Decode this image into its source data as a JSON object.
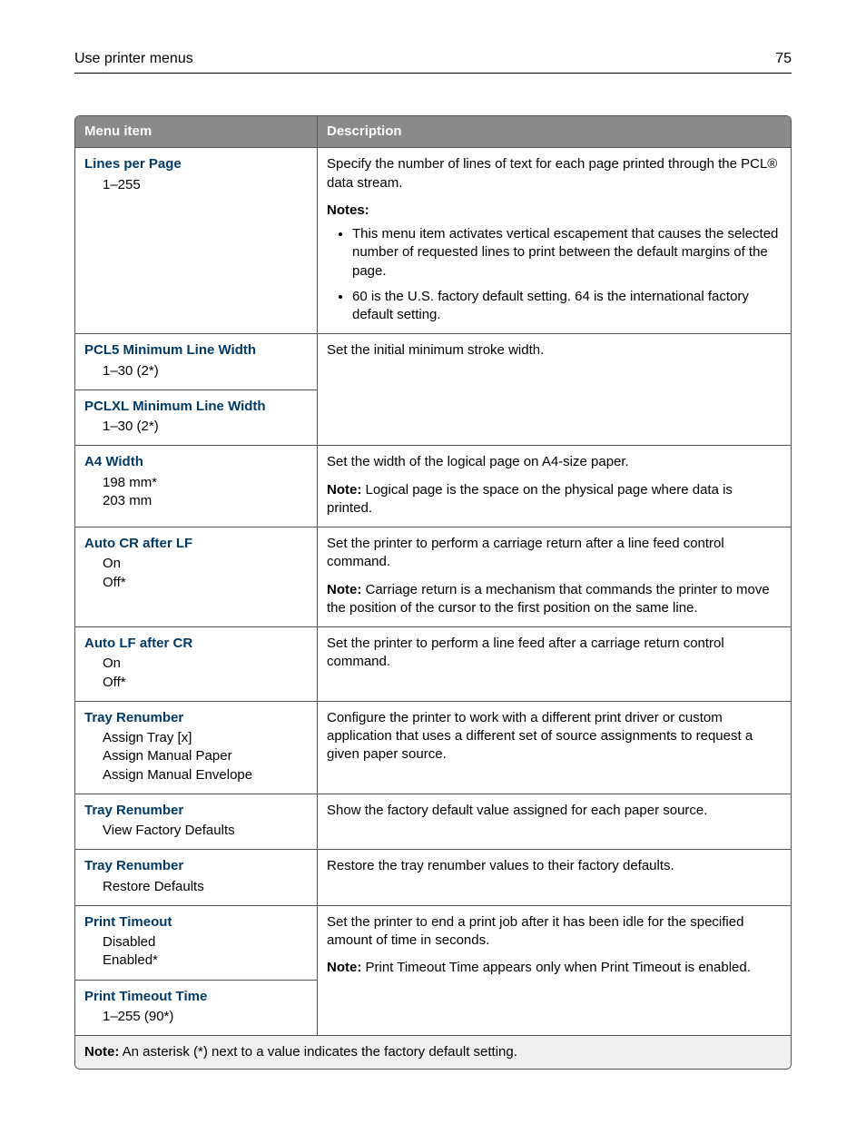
{
  "header": {
    "title": "Use printer menus",
    "page_number": "75"
  },
  "table": {
    "headers": {
      "menu_item": "Menu item",
      "description": "Description"
    },
    "rows": [
      {
        "title": "Lines per Page",
        "options": [
          "1–255"
        ],
        "desc_paragraphs": [
          "Specify the number of lines of text for each page printed through the PCL® data stream."
        ],
        "notes_label": "Notes:",
        "notes_bullets": [
          "This menu item activates vertical escapement that causes the selected number of requested lines to print between the default margins of the page.",
          "60 is the U.S. factory default setting. 64 is the international factory default setting."
        ]
      },
      {
        "title": "PCL5 Minimum Line Width",
        "options": [
          "1–30 (2*)"
        ],
        "desc_paragraphs": [
          "Set the initial minimum stroke width."
        ],
        "rowspan_desc_for_next": true
      },
      {
        "title": "PCLXL Minimum Line Width",
        "options": [
          "1–30 (2*)"
        ],
        "no_desc": true
      },
      {
        "title": "A4 Width",
        "options": [
          "198 mm*",
          "203 mm"
        ],
        "desc_paragraphs": [
          "Set the width of the logical page on A4‑size paper."
        ],
        "note_inline": "Note:",
        "note_inline_text": " Logical page is the space on the physical page where data is printed."
      },
      {
        "title": "Auto CR after LF",
        "options": [
          "On",
          "Off*"
        ],
        "desc_paragraphs": [
          "Set the printer to perform a carriage return after a line feed control command."
        ],
        "note_inline": "Note:",
        "note_inline_text": " Carriage return is a mechanism that commands the printer to move the position of the cursor to the first position on the same line."
      },
      {
        "title": "Auto LF after CR",
        "options": [
          "On",
          "Off*"
        ],
        "desc_paragraphs": [
          "Set the printer to perform a line feed after a carriage return control command."
        ]
      },
      {
        "title": "Tray Renumber",
        "options": [
          "Assign Tray [x]",
          "Assign Manual Paper",
          "Assign Manual Envelope"
        ],
        "desc_paragraphs": [
          "Configure the printer to work with a different print driver or custom application that uses a different set of source assignments to request a given paper source."
        ]
      },
      {
        "title": "Tray Renumber",
        "options": [
          "View Factory Defaults"
        ],
        "desc_paragraphs": [
          "Show the factory default value assigned for each paper source."
        ]
      },
      {
        "title": "Tray Renumber",
        "options": [
          "Restore Defaults"
        ],
        "desc_paragraphs": [
          "Restore the tray renumber values to their factory defaults."
        ]
      },
      {
        "title": "Print Timeout",
        "options": [
          "Disabled",
          "Enabled*"
        ],
        "desc_paragraphs": [
          "Set the printer to end a print job after it has been idle for the specified amount of time in seconds."
        ],
        "note_inline": "Note:",
        "note_inline_text": " Print Timeout Time appears only when Print Timeout is enabled.",
        "rowspan_desc_for_next": true
      },
      {
        "title": "Print Timeout Time",
        "options": [
          "1–255 (90*)"
        ],
        "no_desc": true
      }
    ],
    "footnote": {
      "label": "Note:",
      "text": " An asterisk (*) next to a value indicates the factory default setting."
    }
  }
}
